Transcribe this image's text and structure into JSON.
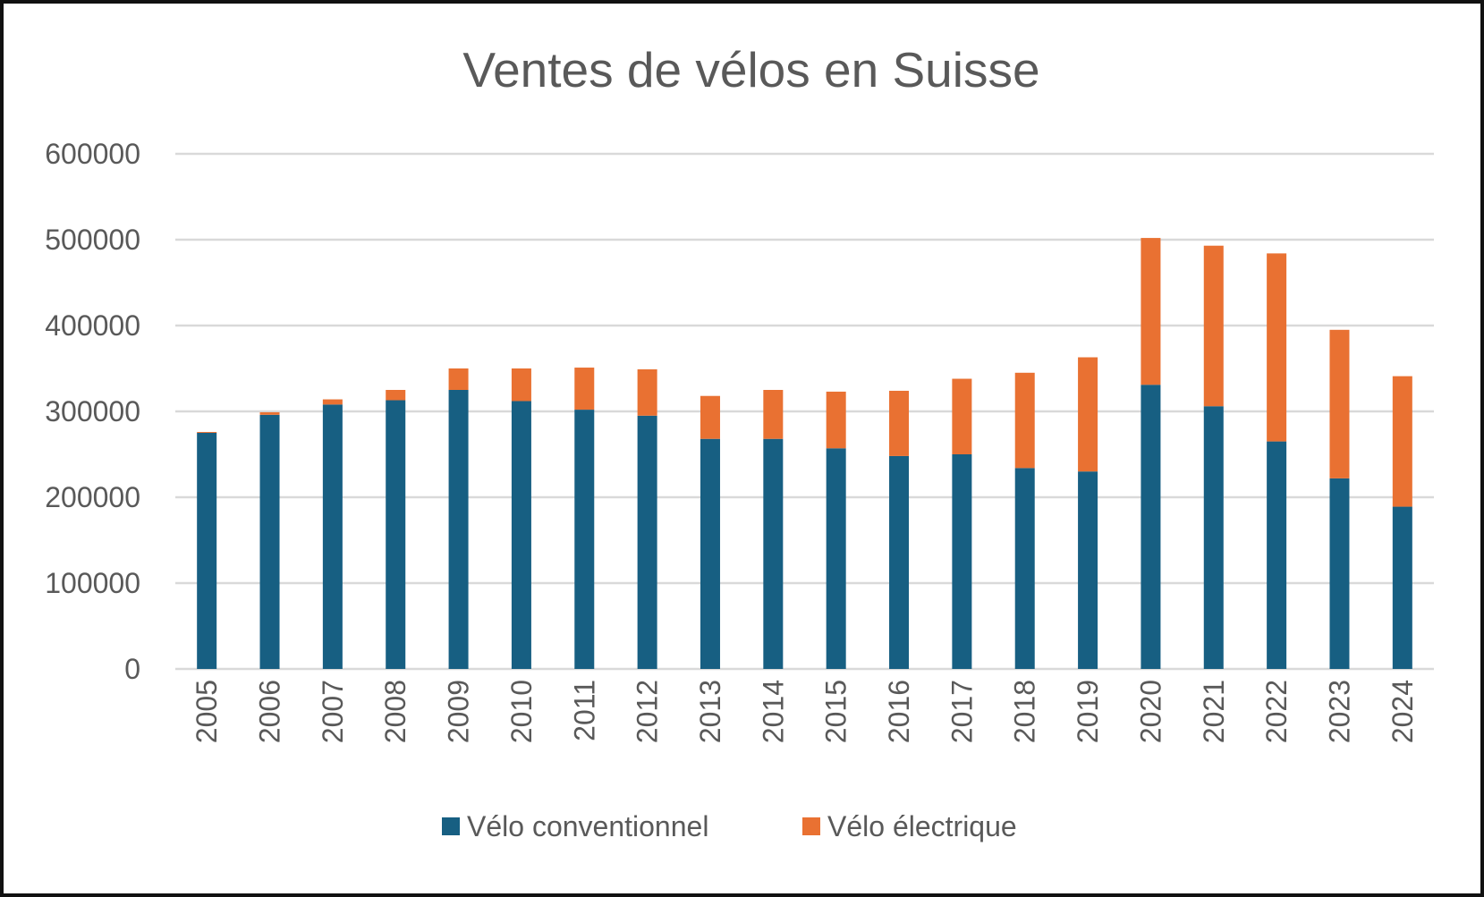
{
  "chart_data": {
    "type": "bar",
    "stacked": true,
    "title": "Ventes de vélos en Suisse",
    "xlabel": "",
    "ylabel": "",
    "ylim": [
      0,
      600000
    ],
    "yticks": [
      "0",
      "100000",
      "200000",
      "300000",
      "400000",
      "500000",
      "600000"
    ],
    "grid": true,
    "legend_position": "bottom",
    "categories": [
      "2005",
      "2006",
      "2007",
      "2008",
      "2009",
      "2010",
      "2011",
      "2012",
      "2013",
      "2014",
      "2015",
      "2016",
      "2017",
      "2018",
      "2019",
      "2020",
      "2021",
      "2022",
      "2023",
      "2024"
    ],
    "series": [
      {
        "name": "Vélo conventionnel",
        "color": "#175f82",
        "values": [
          275000,
          296000,
          308000,
          313000,
          325000,
          312000,
          302000,
          295000,
          268000,
          268000,
          257000,
          248000,
          250000,
          234000,
          230000,
          331000,
          306000,
          265000,
          222000,
          189000
        ]
      },
      {
        "name": "Vélo électrique",
        "color": "#e97132",
        "values": [
          1000,
          3000,
          6000,
          12000,
          25000,
          38000,
          49000,
          54000,
          50000,
          57000,
          66000,
          76000,
          88000,
          111000,
          133000,
          171000,
          187000,
          219000,
          173000,
          152000
        ]
      }
    ]
  }
}
